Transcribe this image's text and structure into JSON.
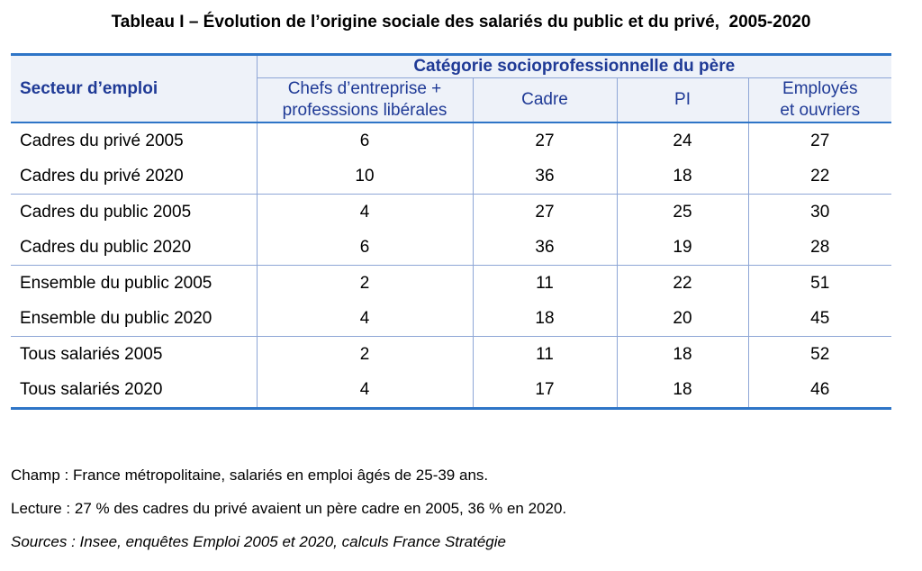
{
  "title": "Tableau I – Évolution de l’origine sociale des salariés du public et du privé,  2005-2020",
  "table": {
    "row_header": "Secteur d’emploi",
    "group_header": "Catégorie socioprofessionnelle du père",
    "columns": [
      [
        "Chefs d’entreprise +",
        "professsions libérales"
      ],
      [
        "Cadre"
      ],
      [
        "PI"
      ],
      [
        "Employés",
        "et ouvriers"
      ]
    ],
    "rows": [
      {
        "label": "Cadres du privé 2005",
        "values": [
          "6",
          "27",
          "24",
          "27"
        ]
      },
      {
        "label": "Cadres du privé 2020",
        "values": [
          "10",
          "36",
          "18",
          "22"
        ]
      },
      {
        "label": "Cadres du public 2005",
        "values": [
          "4",
          "27",
          "25",
          "30"
        ]
      },
      {
        "label": "Cadres du public 2020",
        "values": [
          "6",
          "36",
          "19",
          "28"
        ]
      },
      {
        "label": "Ensemble du public 2005",
        "values": [
          "2",
          "11",
          "22",
          "51"
        ]
      },
      {
        "label": "Ensemble du public 2020",
        "values": [
          "4",
          "18",
          "20",
          "45"
        ]
      },
      {
        "label": "Tous salariés 2005",
        "values": [
          "2",
          "11",
          "18",
          "52"
        ]
      },
      {
        "label": "Tous salariés 2020",
        "values": [
          "4",
          "17",
          "18",
          "46"
        ]
      }
    ]
  },
  "notes": {
    "champ": "Champ : France métropolitaine, salariés en emploi âgés de 25-39 ans.",
    "lecture": "Lecture : 27 % des cadres du privé avaient un père cadre en 2005, 36 % en 2020.",
    "sources": "Sources : Insee, enquêtes Emploi 2005 et 2020, calculs France Stratégie"
  },
  "colors": {
    "accent_blue": "#2e75c7",
    "header_text": "#1f3a96",
    "header_bg": "#eef2f9",
    "rule_light": "#8ea6d6"
  }
}
